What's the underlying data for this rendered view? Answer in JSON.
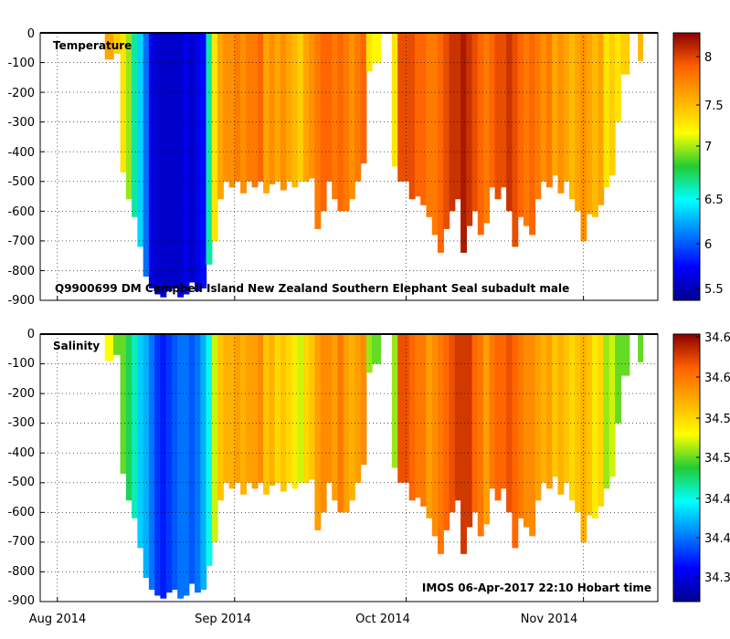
{
  "footer": "IMOS 06-Apr-2017 22:10 Hobart time",
  "chart_data": [
    {
      "type": "heatmap",
      "title": "Temperature",
      "subtitle": "Q9900699 DM Campbell Island New Zealand Southern Elephant Seal subadult male",
      "xlabel": "",
      "ylabel": "",
      "x_ticks": [
        "Aug 2014",
        "Sep 2014",
        "Oct 2014",
        "Nov 2014"
      ],
      "y_ticks": [
        "0",
        "-100",
        "-200",
        "-300",
        "-400",
        "-500",
        "-600",
        "-700",
        "-800",
        "-900"
      ],
      "ylim": [
        -900,
        0
      ],
      "xlim_days": [
        -3,
        105
      ],
      "grid": true,
      "colorbar": {
        "ticks": [
          "5.5",
          "6",
          "6.5",
          "7",
          "7.5",
          "8"
        ],
        "range": [
          5.3,
          8.3
        ],
        "colormap": "jet",
        "position": "right"
      }
    },
    {
      "type": "heatmap",
      "title": "Salinity",
      "subtitle": "",
      "xlabel": "",
      "ylabel": "",
      "x_ticks": [
        "Aug 2014",
        "Sep 2014",
        "Oct 2014",
        "Nov 2014"
      ],
      "y_ticks": [
        "0",
        "-100",
        "-200",
        "-300",
        "-400",
        "-500",
        "-600",
        "-700",
        "-800",
        "-900"
      ],
      "ylim": [
        -900,
        0
      ],
      "xlim_days": [
        -3,
        105
      ],
      "grid": true,
      "colorbar": {
        "ticks": [
          "34.35",
          "34.4",
          "34.45",
          "34.5",
          "34.55",
          "34.6",
          "34.65"
        ],
        "range": [
          34.32,
          34.655
        ],
        "colormap": "jet",
        "position": "right"
      }
    }
  ],
  "profiles": [
    {
      "day": 8.3,
      "depth": 90,
      "temp": 7.6,
      "sal": 34.53
    },
    {
      "day": 9.8,
      "depth": 70,
      "temp": 7.4,
      "sal": 34.5
    },
    {
      "day": 11.0,
      "depth": 470,
      "temp": 7.3,
      "sal": 34.5
    },
    {
      "day": 12.0,
      "depth": 560,
      "temp": 7.0,
      "sal": 34.48
    },
    {
      "day": 13.0,
      "depth": 620,
      "temp": 6.6,
      "sal": 34.46
    },
    {
      "day": 14.0,
      "depth": 720,
      "temp": 6.3,
      "sal": 34.43
    },
    {
      "day": 15.0,
      "depth": 820,
      "temp": 6.0,
      "sal": 34.42
    },
    {
      "day": 16.0,
      "depth": 860,
      "temp": 5.6,
      "sal": 34.4
    },
    {
      "day": 17.0,
      "depth": 880,
      "temp": 5.5,
      "sal": 34.38
    },
    {
      "day": 18.0,
      "depth": 890,
      "temp": 5.5,
      "sal": 34.37
    },
    {
      "day": 19.0,
      "depth": 870,
      "temp": 5.5,
      "sal": 34.38
    },
    {
      "day": 20.0,
      "depth": 860,
      "temp": 5.5,
      "sal": 34.39
    },
    {
      "day": 21.0,
      "depth": 890,
      "temp": 5.5,
      "sal": 34.4
    },
    {
      "day": 22.0,
      "depth": 880,
      "temp": 5.6,
      "sal": 34.4
    },
    {
      "day": 23.0,
      "depth": 840,
      "temp": 5.5,
      "sal": 34.39
    },
    {
      "day": 24.0,
      "depth": 870,
      "temp": 5.6,
      "sal": 34.4
    },
    {
      "day": 25.0,
      "depth": 860,
      "temp": 5.7,
      "sal": 34.42
    },
    {
      "day": 26.0,
      "depth": 780,
      "temp": 6.6,
      "sal": 34.45
    },
    {
      "day": 27.0,
      "depth": 700,
      "temp": 7.3,
      "sal": 34.52
    },
    {
      "day": 28.0,
      "depth": 560,
      "temp": 7.6,
      "sal": 34.56
    },
    {
      "day": 29.0,
      "depth": 500,
      "temp": 7.7,
      "sal": 34.57
    },
    {
      "day": 30.0,
      "depth": 520,
      "temp": 7.7,
      "sal": 34.57
    },
    {
      "day": 31.0,
      "depth": 500,
      "temp": 7.8,
      "sal": 34.58
    },
    {
      "day": 32.0,
      "depth": 540,
      "temp": 7.7,
      "sal": 34.57
    },
    {
      "day": 33.0,
      "depth": 500,
      "temp": 7.8,
      "sal": 34.58
    },
    {
      "day": 34.0,
      "depth": 520,
      "temp": 7.8,
      "sal": 34.58
    },
    {
      "day": 35.0,
      "depth": 500,
      "temp": 7.9,
      "sal": 34.59
    },
    {
      "day": 36.0,
      "depth": 540,
      "temp": 7.6,
      "sal": 34.56
    },
    {
      "day": 37.0,
      "depth": 510,
      "temp": 7.7,
      "sal": 34.57
    },
    {
      "day": 38.0,
      "depth": 500,
      "temp": 7.6,
      "sal": 34.55
    },
    {
      "day": 39.0,
      "depth": 530,
      "temp": 7.7,
      "sal": 34.56
    },
    {
      "day": 40.0,
      "depth": 500,
      "temp": 7.6,
      "sal": 34.55
    },
    {
      "day": 41.0,
      "depth": 520,
      "temp": 7.5,
      "sal": 34.54
    },
    {
      "day": 42.0,
      "depth": 500,
      "temp": 7.4,
      "sal": 34.52
    },
    {
      "day": 43.0,
      "depth": 500,
      "temp": 7.6,
      "sal": 34.55
    },
    {
      "day": 44.0,
      "depth": 490,
      "temp": 7.7,
      "sal": 34.56
    },
    {
      "day": 45.0,
      "depth": 660,
      "temp": 7.8,
      "sal": 34.58
    },
    {
      "day": 46.0,
      "depth": 600,
      "temp": 7.9,
      "sal": 34.59
    },
    {
      "day": 47.0,
      "depth": 500,
      "temp": 7.9,
      "sal": 34.59
    },
    {
      "day": 48.0,
      "depth": 560,
      "temp": 7.8,
      "sal": 34.58
    },
    {
      "day": 49.0,
      "depth": 600,
      "temp": 7.9,
      "sal": 34.6
    },
    {
      "day": 50.0,
      "depth": 600,
      "temp": 7.8,
      "sal": 34.58
    },
    {
      "day": 51.0,
      "depth": 560,
      "temp": 7.7,
      "sal": 34.57
    },
    {
      "day": 52.0,
      "depth": 500,
      "temp": 7.8,
      "sal": 34.58
    },
    {
      "day": 53.0,
      "depth": 440,
      "temp": 7.9,
      "sal": 34.59
    },
    {
      "day": 54.0,
      "depth": 130,
      "temp": 7.3,
      "sal": 34.51
    },
    {
      "day": 55.0,
      "depth": 100,
      "temp": 7.2,
      "sal": 34.5
    },
    {
      "day": 58.5,
      "depth": 450,
      "temp": 7.3,
      "sal": 34.51
    },
    {
      "day": 59.5,
      "depth": 500,
      "temp": 8.0,
      "sal": 34.62
    },
    {
      "day": 60.5,
      "depth": 500,
      "temp": 8.0,
      "sal": 34.62
    },
    {
      "day": 61.5,
      "depth": 560,
      "temp": 8.0,
      "sal": 34.61
    },
    {
      "day": 62.5,
      "depth": 550,
      "temp": 7.9,
      "sal": 34.6
    },
    {
      "day": 63.5,
      "depth": 580,
      "temp": 7.9,
      "sal": 34.6
    },
    {
      "day": 64.5,
      "depth": 620,
      "temp": 7.8,
      "sal": 34.58
    },
    {
      "day": 65.5,
      "depth": 680,
      "temp": 7.8,
      "sal": 34.59
    },
    {
      "day": 66.5,
      "depth": 740,
      "temp": 7.9,
      "sal": 34.6
    },
    {
      "day": 67.5,
      "depth": 660,
      "temp": 8.0,
      "sal": 34.61
    },
    {
      "day": 68.5,
      "depth": 600,
      "temp": 8.1,
      "sal": 34.62
    },
    {
      "day": 69.5,
      "depth": 560,
      "temp": 8.1,
      "sal": 34.63
    },
    {
      "day": 70.5,
      "depth": 740,
      "temp": 8.2,
      "sal": 34.63
    },
    {
      "day": 71.5,
      "depth": 650,
      "temp": 8.1,
      "sal": 34.63
    },
    {
      "day": 72.5,
      "depth": 600,
      "temp": 8.0,
      "sal": 34.61
    },
    {
      "day": 73.5,
      "depth": 680,
      "temp": 7.9,
      "sal": 34.6
    },
    {
      "day": 74.5,
      "depth": 640,
      "temp": 7.8,
      "sal": 34.58
    },
    {
      "day": 75.5,
      "depth": 520,
      "temp": 7.9,
      "sal": 34.6
    },
    {
      "day": 76.5,
      "depth": 560,
      "temp": 8.0,
      "sal": 34.61
    },
    {
      "day": 77.5,
      "depth": 520,
      "temp": 8.0,
      "sal": 34.61
    },
    {
      "day": 78.5,
      "depth": 600,
      "temp": 8.1,
      "sal": 34.62
    },
    {
      "day": 79.5,
      "depth": 720,
      "temp": 8.0,
      "sal": 34.61
    },
    {
      "day": 80.5,
      "depth": 620,
      "temp": 7.9,
      "sal": 34.6
    },
    {
      "day": 81.5,
      "depth": 650,
      "temp": 7.8,
      "sal": 34.59
    },
    {
      "day": 82.5,
      "depth": 680,
      "temp": 7.9,
      "sal": 34.59
    },
    {
      "day": 83.5,
      "depth": 560,
      "temp": 7.8,
      "sal": 34.58
    },
    {
      "day": 84.5,
      "depth": 500,
      "temp": 7.7,
      "sal": 34.57
    },
    {
      "day": 85.5,
      "depth": 520,
      "temp": 7.8,
      "sal": 34.58
    },
    {
      "day": 86.5,
      "depth": 480,
      "temp": 7.6,
      "sal": 34.56
    },
    {
      "day": 87.5,
      "depth": 540,
      "temp": 7.7,
      "sal": 34.57
    },
    {
      "day": 88.5,
      "depth": 500,
      "temp": 7.6,
      "sal": 34.56
    },
    {
      "day": 89.5,
      "depth": 560,
      "temp": 7.5,
      "sal": 34.55
    },
    {
      "day": 90.5,
      "depth": 600,
      "temp": 7.6,
      "sal": 34.56
    },
    {
      "day": 91.5,
      "depth": 700,
      "temp": 7.7,
      "sal": 34.57
    },
    {
      "day": 92.5,
      "depth": 610,
      "temp": 7.6,
      "sal": 34.56
    },
    {
      "day": 93.5,
      "depth": 620,
      "temp": 7.5,
      "sal": 34.54
    },
    {
      "day": 94.5,
      "depth": 580,
      "temp": 7.6,
      "sal": 34.55
    },
    {
      "day": 95.5,
      "depth": 520,
      "temp": 7.3,
      "sal": 34.51
    },
    {
      "day": 96.5,
      "depth": 480,
      "temp": 7.4,
      "sal": 34.52
    },
    {
      "day": 97.5,
      "depth": 300,
      "temp": 7.3,
      "sal": 34.5
    },
    {
      "day": 98.5,
      "depth": 140,
      "temp": 7.4,
      "sal": 34.5
    },
    {
      "day": 101.5,
      "depth": 95,
      "temp": 7.5,
      "sal": 34.5
    }
  ]
}
